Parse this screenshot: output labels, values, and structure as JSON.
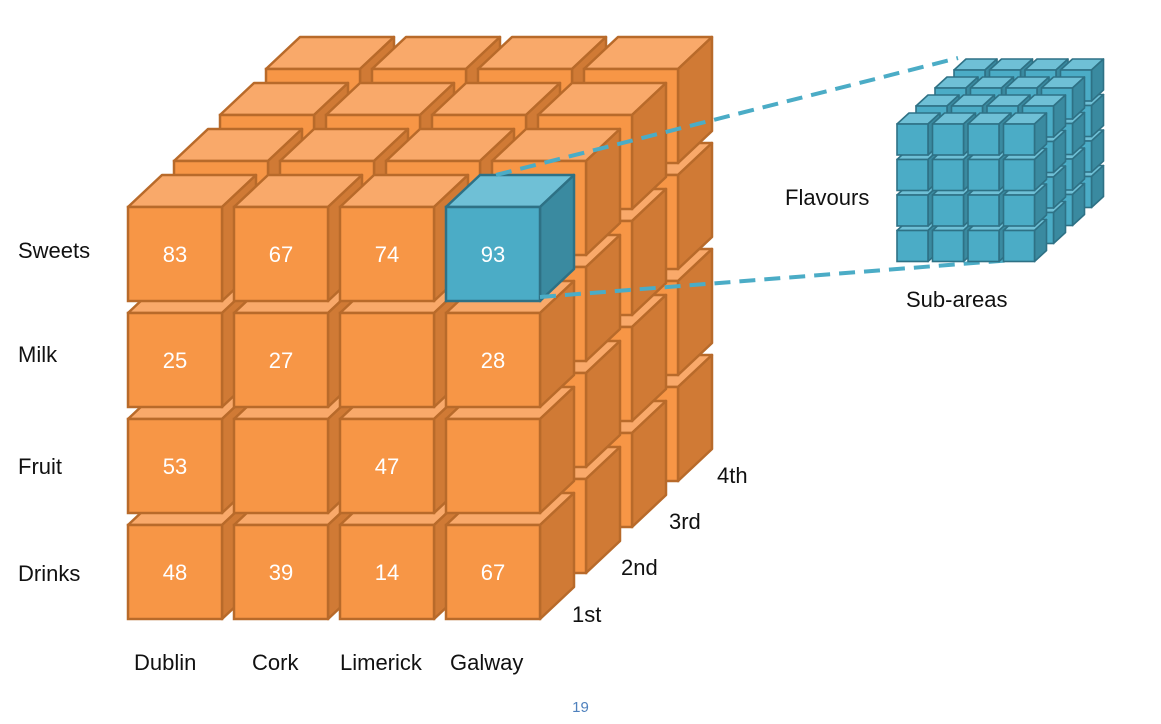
{
  "rows": [
    "Sweets",
    "Milk",
    "Fruit",
    "Drinks"
  ],
  "columns": [
    "Dublin",
    "Cork",
    "Limerick",
    "Galway"
  ],
  "depth_labels": [
    "1st",
    "2nd",
    "3rd",
    "4th"
  ],
  "values": [
    [
      "83",
      "67",
      "74",
      "93"
    ],
    [
      "25",
      "27",
      "",
      "28"
    ],
    [
      "53",
      "",
      "47",
      ""
    ],
    [
      "48",
      "39",
      "14",
      "67"
    ]
  ],
  "highlight": {
    "row": 0,
    "col": 3
  },
  "detail_cube": {
    "side_label": "Flavours",
    "bottom_label": "Sub-areas"
  },
  "colors": {
    "orange_front": "#f79646",
    "orange_top": "#f9a96a",
    "orange_side": "#d07a35",
    "orange_edge": "#b86a2a",
    "teal_front": "#4bacc6",
    "teal_top": "#6fc0d6",
    "teal_side": "#3a8aa0",
    "teal_edge": "#2e7185",
    "dash": "#4bacc6"
  },
  "page_number": "19"
}
